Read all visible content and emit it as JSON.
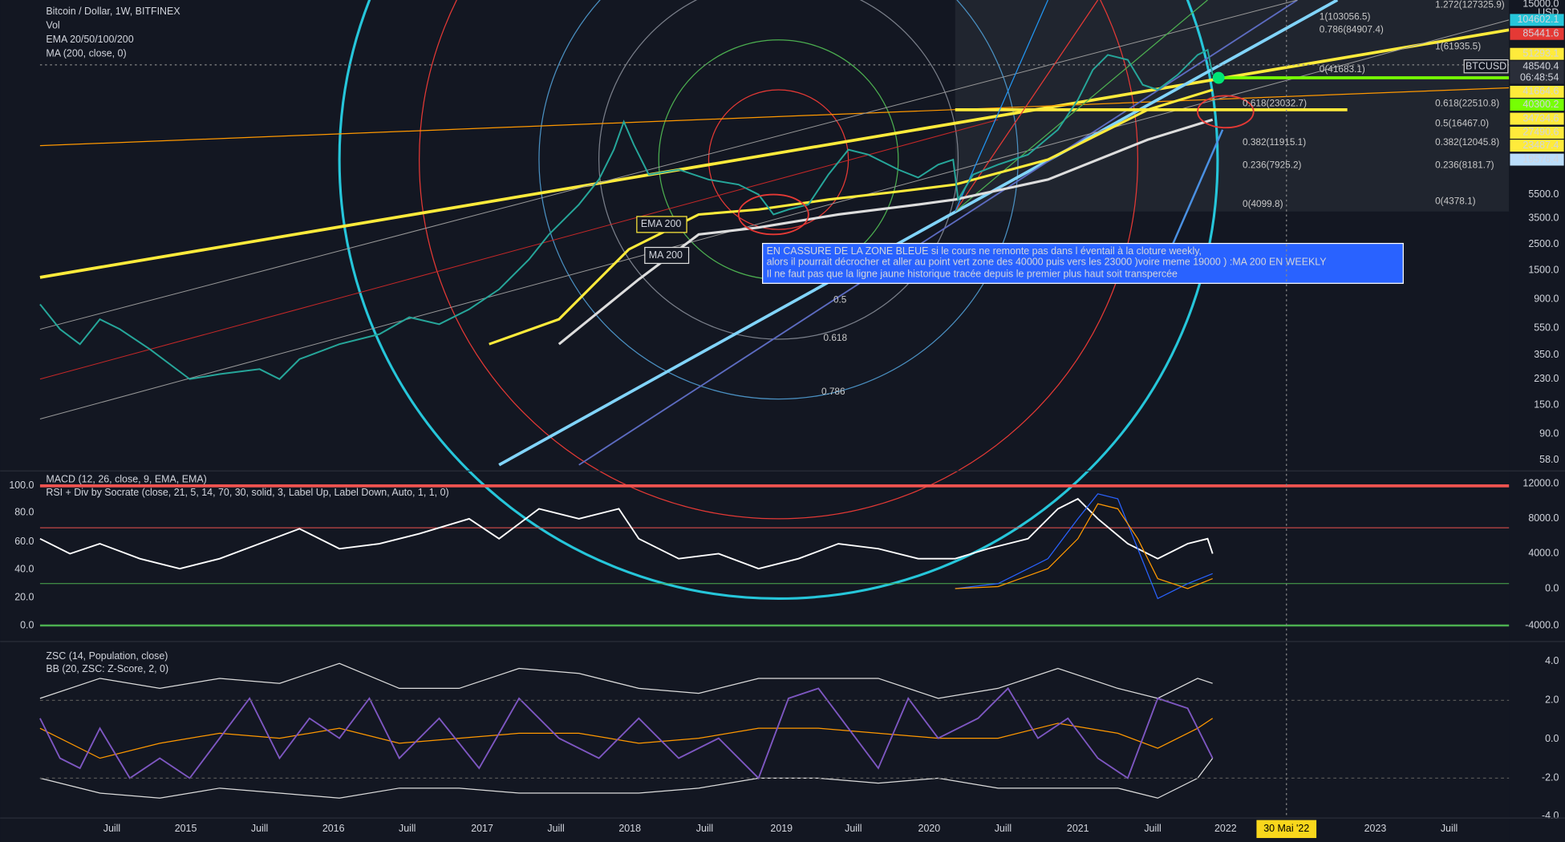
{
  "header": {
    "title": "Bitcoin / Dollar, 1W, BITFINEX",
    "indicators": [
      "Vol",
      "EMA 20/50/100/200",
      "MA (200, close, 0)"
    ]
  },
  "price_axis": {
    "labels": [
      "15000.0",
      "USD",
      "5500.0",
      "3500.0",
      "2500.0",
      "1500.0",
      "900.0",
      "550.0",
      "350.0",
      "230.0",
      "150.0",
      "90.0",
      "58.0"
    ],
    "tags": [
      "104602.1",
      "85441.6",
      "51293.1",
      "48540.4",
      "06:48:54",
      "41664.6",
      "40300.2",
      "34734.6",
      "27490.6",
      "23487.4",
      "19576.4"
    ],
    "symbol": "BTCUSD"
  },
  "fib_labels": [
    "1.272(127325.9)",
    "1(103056.5)",
    "0.786(84907.4)",
    "1(61935.5)",
    "0(41683.1)",
    "0.618(23032.7)",
    "0.618(22510.8)",
    "0.5(16467.0)",
    "0.382(11915.1)",
    "0.382(12045.8)",
    "0.236(7925.2)",
    "0.236(8181.7)",
    "0(4099.8)",
    "0(4378.1)"
  ],
  "fan_labels": [
    "0.5",
    "0.618",
    "0.786"
  ],
  "chart_labels": [
    "EMA 200",
    "MA 200"
  ],
  "annotation": [
    "EN CASSURE DE LA ZONE BLEUE  si le cours ne remonte pas dans l éventail à la cloture weekly,",
    "alors il pourrait décrocher et aller au point vert zone des 40000 puis vers les 23000 )voire  meme 19000 ) :MA 200 EN WEEKLY",
    "Il ne faut pas que la ligne jaune historique tracée depuis le premier plus haut soit transpercée"
  ],
  "macd_panel": {
    "legend": [
      "MACD (12, 26, close, 9, EMA, EMA)",
      "RSI + Div by Socrate (close, 21, 5, 14, 70, 30, solid, 3, Label Up, Label Down, Auto, 1, 1, 0)"
    ],
    "right_axis": [
      "12000.0",
      "8000.0",
      "4000.0",
      "0.0",
      "-4000.0"
    ],
    "left_axis": [
      "100.0",
      "80.0",
      "60.0",
      "40.0",
      "20.0",
      "0.0"
    ]
  },
  "zsc_panel": {
    "legend": [
      "ZSC (14, Population, close)",
      "BB (20, ZSC: Z-Score, 2, 0)"
    ],
    "right_axis": [
      "4.0",
      "2.0",
      "0.0",
      "-2.0",
      "-4.0"
    ]
  },
  "time_axis": [
    "Juill",
    "2015",
    "Juill",
    "2016",
    "Juill",
    "2017",
    "Juill",
    "2018",
    "Juill",
    "2019",
    "Juill",
    "2020",
    "Juill",
    "2021",
    "Juill",
    "2022",
    "30 Mai '22",
    "2023",
    "Juill"
  ]
}
